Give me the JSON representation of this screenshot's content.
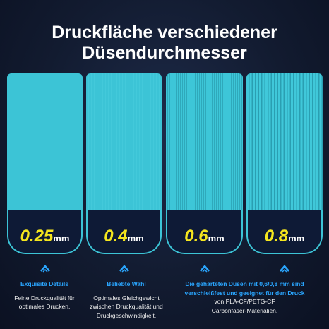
{
  "title_lines": [
    "Druckfläche verschiedener",
    "Düsendurchmesser"
  ],
  "panels": [
    {
      "size": "0.25",
      "unit": "mm"
    },
    {
      "size": "0.4",
      "unit": "mm"
    },
    {
      "size": "0.6",
      "unit": "mm"
    },
    {
      "size": "0.8",
      "unit": "mm"
    }
  ],
  "captions": [
    {
      "heading_lines": [
        "Exquisite Details"
      ],
      "body_lines": [
        "Feine Druckqualität für",
        "optimales Drucken."
      ]
    },
    {
      "heading_lines": [
        "Beliebte Wahl"
      ],
      "body_lines": [
        "Optimales Gleichgewicht",
        "zwischen Druckqualität und",
        "Druckgeschwindigkeit."
      ]
    },
    {
      "heading_lines": [
        "Die gehärteten Düsen mit 0,6/0,8 mm sind",
        "verschleißfest und geeignet für den Druck"
      ],
      "body_lines": [
        "von PLA-CF/PETG-CF",
        "Carbonfaser-Materialien."
      ]
    }
  ]
}
